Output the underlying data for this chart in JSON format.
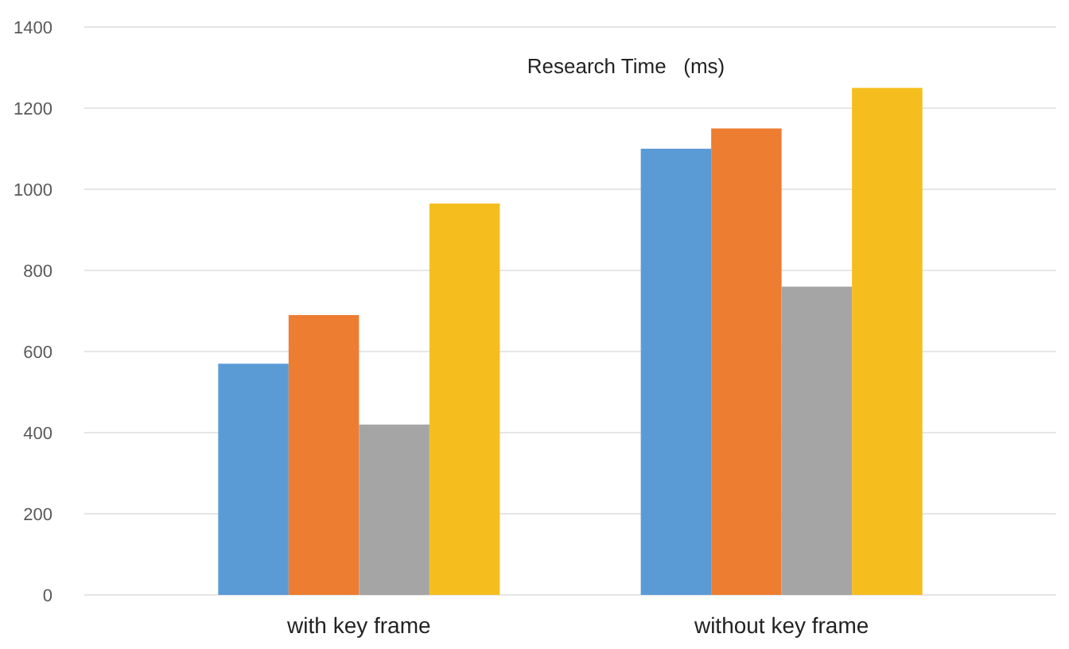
{
  "chart_data": {
    "type": "bar",
    "title": "Research Time   (ms)",
    "categories": [
      "with key frame",
      "without key frame"
    ],
    "series": [
      {
        "color": "#5b9bd5",
        "values": [
          570,
          1100
        ]
      },
      {
        "color": "#ed7d31",
        "values": [
          690,
          1150
        ]
      },
      {
        "color": "#a5a5a5",
        "values": [
          420,
          760
        ]
      },
      {
        "color": "#f5be1e",
        "values": [
          965,
          1250
        ]
      }
    ],
    "ylim": [
      0,
      1400
    ],
    "yticks": [
      0,
      200,
      400,
      600,
      800,
      1000,
      1200,
      1400
    ],
    "grid": "y"
  }
}
